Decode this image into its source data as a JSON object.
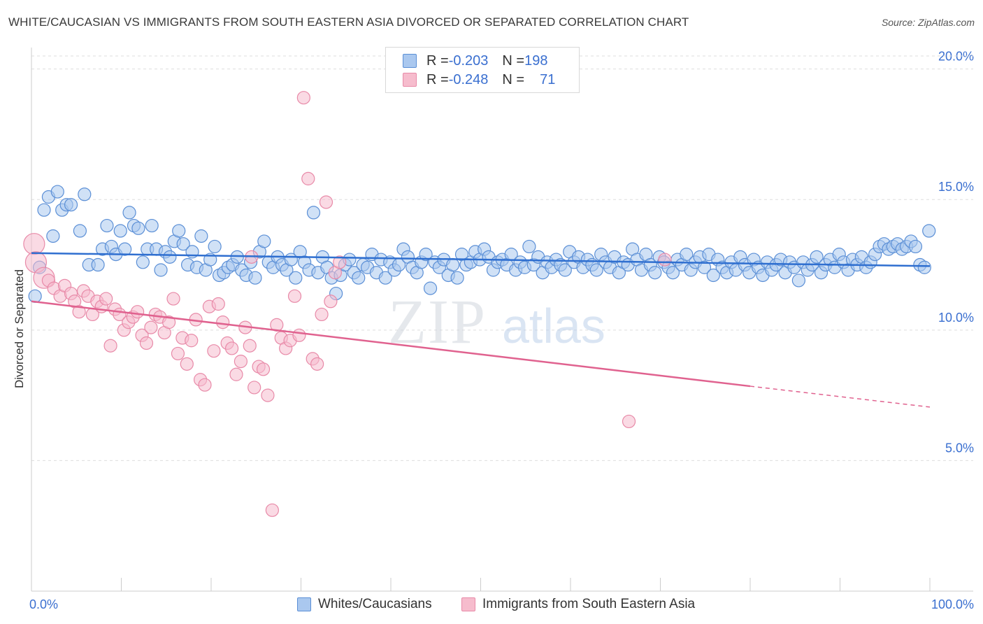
{
  "title": "WHITE/CAUCASIAN VS IMMIGRANTS FROM SOUTH EASTERN ASIA DIVORCED OR SEPARATED CORRELATION CHART",
  "source": "Source: ZipAtlas.com",
  "colors": {
    "blue_fill": "#aac8ef",
    "blue_stroke": "#5b8fd6",
    "blue_line": "#2f6fd0",
    "pink_fill": "#f6bccd",
    "pink_stroke": "#e88aa8",
    "pink_line": "#e0628f",
    "tick_label": "#3a6fd0",
    "grid": "#dddddd"
  },
  "legend": {
    "rows": [
      {
        "r_label": "R = ",
        "r_value": "-0.203",
        "n_label": "N = ",
        "n_value": "198"
      },
      {
        "r_label": "R = ",
        "r_value": "-0.248",
        "n_label": "N = ",
        "n_value": "71"
      }
    ]
  },
  "chart_data": {
    "type": "scatter",
    "title": "WHITE/CAUCASIAN VS IMMIGRANTS FROM SOUTH EASTERN ASIA DIVORCED OR SEPARATED CORRELATION CHART",
    "xlabel": "",
    "ylabel": "Divorced or Separated",
    "x_tick_labels": [
      "0.0%",
      "100.0%"
    ],
    "y_tick_labels": [
      "5.0%",
      "10.0%",
      "15.0%",
      "20.0%"
    ],
    "xlim": [
      0,
      100
    ],
    "ylim": [
      0,
      20.5
    ],
    "grid": true,
    "legend_position": "top-center",
    "watermark": "ZIPatlas",
    "series": [
      {
        "name": "Whites/Caucasians",
        "r": -0.203,
        "n": 198,
        "trend": {
          "x": [
            0,
            100
          ],
          "y": [
            12.95,
            12.45
          ]
        },
        "points": [
          [
            0.4,
            11.3
          ],
          [
            0.9,
            12.4
          ],
          [
            1.4,
            14.6
          ],
          [
            1.9,
            15.1
          ],
          [
            2.4,
            13.6
          ],
          [
            2.9,
            15.3
          ],
          [
            3.4,
            14.6
          ],
          [
            3.9,
            14.8
          ],
          [
            4.4,
            14.8
          ],
          [
            5.4,
            13.8
          ],
          [
            5.9,
            15.2
          ],
          [
            6.4,
            12.5
          ],
          [
            7.4,
            12.5
          ],
          [
            7.9,
            13.1
          ],
          [
            8.4,
            14.0
          ],
          [
            8.9,
            13.2
          ],
          [
            9.4,
            12.9
          ],
          [
            9.9,
            13.8
          ],
          [
            10.4,
            13.1
          ],
          [
            10.9,
            14.5
          ],
          [
            11.4,
            14.0
          ],
          [
            11.9,
            13.9
          ],
          [
            12.4,
            12.6
          ],
          [
            12.9,
            13.1
          ],
          [
            13.4,
            14.0
          ],
          [
            13.9,
            13.1
          ],
          [
            14.4,
            12.3
          ],
          [
            14.9,
            13.0
          ],
          [
            15.4,
            12.8
          ],
          [
            15.9,
            13.4
          ],
          [
            16.4,
            13.8
          ],
          [
            16.9,
            13.3
          ],
          [
            17.4,
            12.5
          ],
          [
            17.9,
            13.0
          ],
          [
            18.4,
            12.4
          ],
          [
            18.9,
            13.6
          ],
          [
            19.4,
            12.3
          ],
          [
            19.9,
            12.7
          ],
          [
            20.4,
            13.2
          ],
          [
            20.9,
            12.1
          ],
          [
            21.4,
            12.2
          ],
          [
            21.9,
            12.4
          ],
          [
            22.4,
            12.5
          ],
          [
            22.9,
            12.8
          ],
          [
            23.4,
            12.3
          ],
          [
            23.9,
            12.1
          ],
          [
            24.4,
            12.6
          ],
          [
            24.9,
            12.0
          ],
          [
            25.4,
            13.0
          ],
          [
            25.9,
            13.4
          ],
          [
            26.4,
            12.6
          ],
          [
            26.9,
            12.4
          ],
          [
            27.4,
            12.8
          ],
          [
            27.9,
            12.5
          ],
          [
            28.4,
            12.3
          ],
          [
            28.9,
            12.7
          ],
          [
            29.4,
            12.0
          ],
          [
            29.9,
            13.0
          ],
          [
            30.4,
            12.6
          ],
          [
            30.9,
            12.3
          ],
          [
            31.4,
            14.5
          ],
          [
            31.9,
            12.2
          ],
          [
            32.4,
            12.8
          ],
          [
            32.9,
            12.4
          ],
          [
            33.4,
            12.0
          ],
          [
            33.9,
            11.4
          ],
          [
            34.4,
            12.1
          ],
          [
            34.9,
            12.5
          ],
          [
            35.4,
            12.7
          ],
          [
            35.9,
            12.2
          ],
          [
            36.4,
            12.0
          ],
          [
            36.9,
            12.5
          ],
          [
            37.4,
            12.4
          ],
          [
            37.9,
            12.9
          ],
          [
            38.4,
            12.2
          ],
          [
            38.9,
            12.7
          ],
          [
            39.4,
            12.0
          ],
          [
            39.9,
            12.6
          ],
          [
            40.4,
            12.3
          ],
          [
            40.9,
            12.5
          ],
          [
            41.4,
            13.1
          ],
          [
            41.9,
            12.8
          ],
          [
            42.4,
            12.4
          ],
          [
            42.9,
            12.2
          ],
          [
            43.4,
            12.6
          ],
          [
            43.9,
            12.9
          ],
          [
            44.4,
            11.6
          ],
          [
            44.9,
            12.6
          ],
          [
            45.4,
            12.4
          ],
          [
            45.9,
            12.7
          ],
          [
            46.4,
            12.1
          ],
          [
            46.9,
            12.5
          ],
          [
            47.4,
            12.0
          ],
          [
            47.9,
            12.9
          ],
          [
            48.4,
            12.5
          ],
          [
            48.9,
            12.6
          ],
          [
            49.4,
            13.0
          ],
          [
            49.9,
            12.7
          ],
          [
            50.4,
            13.1
          ],
          [
            50.9,
            12.8
          ],
          [
            51.4,
            12.3
          ],
          [
            51.9,
            12.6
          ],
          [
            52.4,
            12.7
          ],
          [
            52.9,
            12.5
          ],
          [
            53.4,
            12.9
          ],
          [
            53.9,
            12.3
          ],
          [
            54.4,
            12.6
          ],
          [
            54.9,
            12.4
          ],
          [
            55.4,
            13.2
          ],
          [
            55.9,
            12.5
          ],
          [
            56.4,
            12.8
          ],
          [
            56.9,
            12.2
          ],
          [
            57.4,
            12.6
          ],
          [
            57.9,
            12.4
          ],
          [
            58.4,
            12.7
          ],
          [
            58.9,
            12.5
          ],
          [
            59.4,
            12.3
          ],
          [
            59.9,
            13.0
          ],
          [
            60.4,
            12.6
          ],
          [
            60.9,
            12.8
          ],
          [
            61.4,
            12.4
          ],
          [
            61.9,
            12.7
          ],
          [
            62.4,
            12.5
          ],
          [
            62.9,
            12.3
          ],
          [
            63.4,
            12.9
          ],
          [
            63.9,
            12.6
          ],
          [
            64.4,
            12.4
          ],
          [
            64.9,
            12.8
          ],
          [
            65.4,
            12.2
          ],
          [
            65.9,
            12.6
          ],
          [
            66.4,
            12.5
          ],
          [
            66.9,
            13.1
          ],
          [
            67.4,
            12.7
          ],
          [
            67.9,
            12.3
          ],
          [
            68.4,
            12.9
          ],
          [
            68.9,
            12.5
          ],
          [
            69.4,
            12.2
          ],
          [
            69.9,
            12.8
          ],
          [
            70.4,
            12.6
          ],
          [
            70.9,
            12.4
          ],
          [
            71.4,
            12.2
          ],
          [
            71.9,
            12.7
          ],
          [
            72.4,
            12.5
          ],
          [
            72.9,
            12.9
          ],
          [
            73.4,
            12.3
          ],
          [
            73.9,
            12.6
          ],
          [
            74.4,
            12.8
          ],
          [
            74.9,
            12.4
          ],
          [
            75.4,
            12.9
          ],
          [
            75.9,
            12.1
          ],
          [
            76.4,
            12.7
          ],
          [
            76.9,
            12.4
          ],
          [
            77.4,
            12.2
          ],
          [
            77.9,
            12.6
          ],
          [
            78.4,
            12.3
          ],
          [
            78.9,
            12.8
          ],
          [
            79.4,
            12.5
          ],
          [
            79.9,
            12.2
          ],
          [
            80.4,
            12.7
          ],
          [
            80.9,
            12.4
          ],
          [
            81.4,
            12.1
          ],
          [
            81.9,
            12.6
          ],
          [
            82.4,
            12.3
          ],
          [
            82.9,
            12.5
          ],
          [
            83.4,
            12.7
          ],
          [
            83.9,
            12.2
          ],
          [
            84.4,
            12.6
          ],
          [
            84.9,
            12.4
          ],
          [
            85.4,
            11.9
          ],
          [
            85.9,
            12.6
          ],
          [
            86.4,
            12.3
          ],
          [
            86.9,
            12.5
          ],
          [
            87.4,
            12.8
          ],
          [
            87.9,
            12.2
          ],
          [
            88.4,
            12.5
          ],
          [
            88.9,
            12.7
          ],
          [
            89.4,
            12.4
          ],
          [
            89.9,
            12.9
          ],
          [
            90.4,
            12.6
          ],
          [
            90.9,
            12.3
          ],
          [
            91.4,
            12.7
          ],
          [
            91.9,
            12.5
          ],
          [
            92.4,
            12.8
          ],
          [
            92.9,
            12.4
          ],
          [
            93.4,
            12.6
          ],
          [
            93.9,
            12.9
          ],
          [
            94.4,
            13.2
          ],
          [
            94.9,
            13.3
          ],
          [
            95.4,
            13.1
          ],
          [
            95.9,
            13.2
          ],
          [
            96.4,
            13.3
          ],
          [
            96.9,
            13.1
          ],
          [
            97.4,
            13.2
          ],
          [
            97.9,
            13.4
          ],
          [
            98.4,
            13.2
          ],
          [
            98.9,
            12.5
          ],
          [
            99.4,
            12.4
          ],
          [
            99.9,
            13.8
          ]
        ]
      },
      {
        "name": "Immigrants from South Eastern Asia",
        "r": -0.248,
        "n": 71,
        "trend": {
          "x": [
            0,
            80
          ],
          "y": [
            11.1,
            7.85
          ]
        },
        "trend_dashed": {
          "x": [
            80,
            100
          ],
          "y": [
            7.85,
            7.05
          ]
        },
        "points": [
          [
            0.3,
            13.3
          ],
          [
            0.5,
            12.6
          ],
          [
            1.4,
            12.0
          ],
          [
            1.9,
            11.9
          ],
          [
            2.5,
            11.6
          ],
          [
            3.2,
            11.3
          ],
          [
            3.7,
            11.7
          ],
          [
            4.4,
            11.4
          ],
          [
            4.8,
            11.1
          ],
          [
            5.3,
            10.7
          ],
          [
            5.8,
            11.5
          ],
          [
            6.3,
            11.3
          ],
          [
            6.8,
            10.6
          ],
          [
            7.3,
            11.1
          ],
          [
            7.8,
            10.9
          ],
          [
            8.3,
            11.2
          ],
          [
            8.8,
            9.4
          ],
          [
            9.3,
            10.8
          ],
          [
            9.8,
            10.6
          ],
          [
            10.3,
            10.0
          ],
          [
            10.8,
            10.3
          ],
          [
            11.3,
            10.5
          ],
          [
            11.8,
            10.7
          ],
          [
            12.3,
            9.8
          ],
          [
            12.8,
            9.5
          ],
          [
            13.3,
            10.1
          ],
          [
            13.8,
            10.6
          ],
          [
            14.3,
            10.5
          ],
          [
            14.8,
            9.9
          ],
          [
            15.3,
            10.3
          ],
          [
            15.8,
            11.2
          ],
          [
            16.3,
            9.1
          ],
          [
            16.8,
            9.7
          ],
          [
            17.3,
            8.7
          ],
          [
            17.8,
            9.6
          ],
          [
            18.3,
            10.4
          ],
          [
            18.8,
            8.1
          ],
          [
            19.3,
            7.9
          ],
          [
            19.8,
            10.9
          ],
          [
            20.3,
            9.2
          ],
          [
            20.8,
            11.0
          ],
          [
            21.3,
            10.3
          ],
          [
            21.8,
            9.5
          ],
          [
            22.3,
            9.3
          ],
          [
            22.8,
            8.3
          ],
          [
            23.3,
            8.8
          ],
          [
            23.8,
            10.1
          ],
          [
            24.3,
            9.4
          ],
          [
            24.8,
            7.8
          ],
          [
            25.3,
            8.6
          ],
          [
            25.8,
            8.5
          ],
          [
            26.3,
            7.5
          ],
          [
            26.8,
            3.1
          ],
          [
            27.3,
            10.2
          ],
          [
            27.8,
            9.7
          ],
          [
            28.3,
            9.3
          ],
          [
            28.8,
            9.6
          ],
          [
            29.3,
            11.3
          ],
          [
            29.8,
            9.8
          ],
          [
            30.3,
            18.9
          ],
          [
            30.8,
            15.8
          ],
          [
            31.3,
            8.9
          ],
          [
            31.8,
            8.7
          ],
          [
            32.3,
            10.6
          ],
          [
            32.8,
            14.9
          ],
          [
            33.3,
            11.1
          ],
          [
            33.8,
            12.2
          ],
          [
            34.3,
            12.6
          ],
          [
            24.5,
            12.8
          ],
          [
            70.5,
            12.7
          ],
          [
            66.5,
            6.5
          ]
        ]
      }
    ]
  },
  "bottom_legend": [
    {
      "label": "Whites/Caucasians"
    },
    {
      "label": "Immigrants from South Eastern Asia"
    }
  ]
}
